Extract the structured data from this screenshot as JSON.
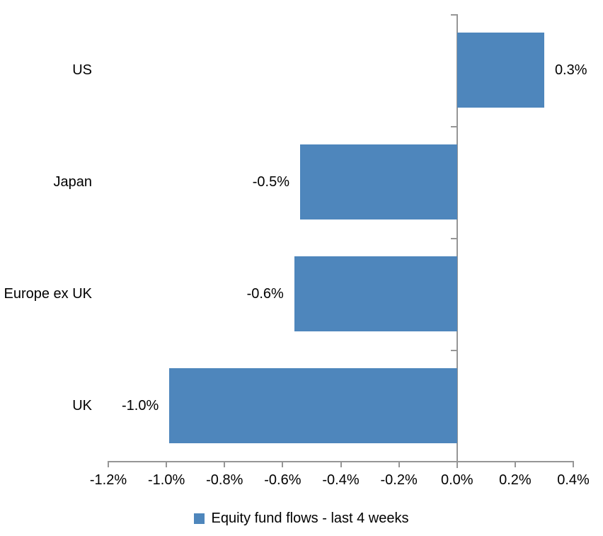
{
  "chart_data": {
    "type": "bar",
    "orientation": "horizontal",
    "title": "",
    "categories": [
      "US",
      "Japan",
      "Europe ex UK",
      "UK"
    ],
    "values": [
      0.3,
      -0.5,
      -0.6,
      -1.0
    ],
    "value_labels": [
      "0.3%",
      "-0.5%",
      "-0.6%",
      "-1.0%"
    ],
    "plotted_values": [
      0.3,
      -0.54,
      -0.56,
      -0.99
    ],
    "unit": "percent",
    "legend": "Equity fund flows - last 4 weeks",
    "legend_position": "bottom",
    "grid": false,
    "x_axis": {
      "min": -1.2,
      "max": 0.4,
      "tick_step": 0.2,
      "tick_labels": [
        "-1.2%",
        "-1.0%",
        "-0.8%",
        "-0.6%",
        "-0.4%",
        "-0.2%",
        "0.0%",
        "0.2%",
        "0.4%"
      ]
    },
    "colors": {
      "bar": "#4E86BC",
      "axis": "#969696",
      "text": "#000000",
      "background": "#FFFFFF"
    }
  }
}
